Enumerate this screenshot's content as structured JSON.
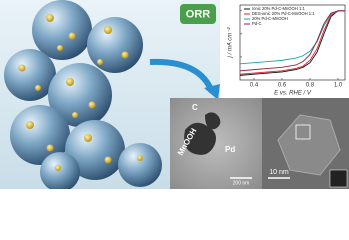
{
  "chart_data": {
    "type": "line",
    "x": [
      0.3,
      0.4,
      0.5,
      0.6,
      0.7,
      0.75,
      0.8,
      0.85,
      0.9,
      0.95,
      1.0,
      1.05
    ],
    "series": [
      {
        "name": "Ionic 20% Pd-C-MnOOH 1:1",
        "color": "#111111",
        "values": [
          -5.6,
          -5.5,
          -5.4,
          -5.3,
          -5.1,
          -4.9,
          -4.5,
          -3.6,
          -2,
          -0.5,
          0,
          0
        ]
      },
      {
        "name": "DES-ionic 20% Pd-C-MnOOH 1:1",
        "color": "#e0202a",
        "values": [
          -5.5,
          -5.4,
          -5.3,
          -5.2,
          -5.0,
          -4.8,
          -4.3,
          -3.3,
          -1.7,
          -0.4,
          0,
          0
        ]
      },
      {
        "name": "20% Pd-C-MnOOH",
        "color": "#1aa6a6",
        "values": [
          -4.6,
          -4.5,
          -4.4,
          -4.3,
          -4.1,
          -3.9,
          -3.5,
          -2.7,
          -1.3,
          -0.3,
          0,
          0
        ]
      },
      {
        "name": "Pd-C",
        "color": "#9b1b3a",
        "values": [
          -5.2,
          -5.1,
          -5.0,
          -4.9,
          -4.7,
          -4.4,
          -3.8,
          -2.6,
          -1.1,
          -0.2,
          0,
          0
        ]
      }
    ],
    "xlim": [
      0.3,
      1.05
    ],
    "ylim": [
      -6,
      0.5
    ],
    "xticks": [
      0.4,
      0.6,
      0.8,
      {
        "value": 1,
        "label": "1.0"
      }
    ],
    "yticks": [
      0,
      -2,
      -4
    ],
    "xlabel": "E vs. RHE / V",
    "ylabel": "j / mA cm⁻²"
  },
  "badge": "ORR",
  "tem": {
    "labels": [
      "C",
      "MnOOH",
      "Pd"
    ],
    "scale_left": "200 nm",
    "scale_right": "10 nm"
  }
}
